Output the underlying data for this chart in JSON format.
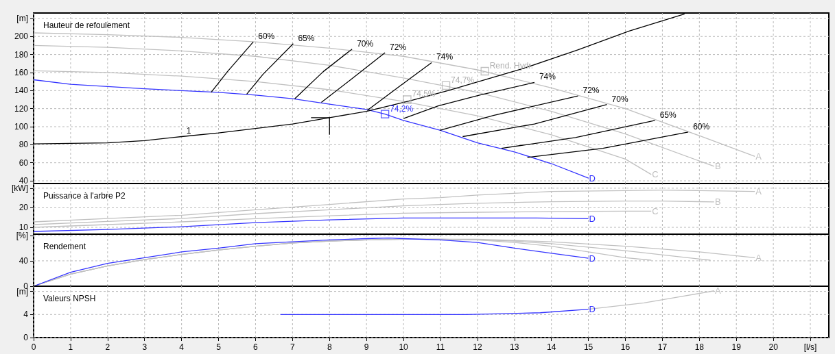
{
  "chart_data": [
    {
      "type": "line",
      "title": "Hauteur de refoulement",
      "xlim": [
        0,
        21.5
      ],
      "xticks": [
        0,
        1,
        2,
        3,
        4,
        5,
        6,
        7,
        8,
        9,
        10,
        11,
        12,
        13,
        14,
        15,
        16,
        17,
        18,
        19,
        20,
        21
      ],
      "ylim": [
        37,
        226
      ],
      "yticks": [
        40,
        60,
        80,
        100,
        120,
        140,
        160,
        180,
        200,
        {
          "value": 220,
          "label": "[m]"
        }
      ],
      "grid": true,
      "marker": "none",
      "tick_labels": "y",
      "series": [
        {
          "name": "A",
          "color": "#c0c0c0",
          "x": [
            0,
            2,
            4,
            6,
            8,
            10,
            12,
            14,
            16,
            18,
            19.5
          ],
          "values": [
            204,
            202,
            199,
            194,
            187,
            178,
            163,
            143,
            120,
            90,
            67
          ]
        },
        {
          "name": "B",
          "color": "#c0c0c0",
          "x": [
            0,
            2,
            4,
            6,
            8,
            10,
            12,
            14,
            16,
            18,
            18.4
          ],
          "values": [
            190,
            188,
            184,
            178,
            168,
            154,
            138,
            117,
            92,
            62,
            56
          ]
        },
        {
          "name": "C",
          "color": "#c0c0c0",
          "x": [
            0,
            2,
            4,
            6,
            8,
            10,
            12,
            14,
            16,
            16.7
          ],
          "values": [
            162,
            160,
            156,
            150,
            141,
            128,
            112,
            91,
            64,
            47
          ]
        },
        {
          "name": "D",
          "color": "#3333ff",
          "x": [
            0,
            1,
            3,
            5,
            6,
            7,
            8,
            9,
            9.5,
            10,
            11,
            12,
            13,
            14,
            15
          ],
          "values": [
            152,
            147,
            142,
            138,
            135,
            131,
            125,
            119,
            114,
            107,
            96,
            82,
            72,
            59,
            43
          ]
        },
        {
          "color": "#000000",
          "x": [
            0,
            2,
            3,
            4,
            5,
            6,
            7,
            8,
            9,
            10.2,
            11.2,
            13.2,
            14.7,
            16.1,
            17.6
          ],
          "values": [
            81,
            82,
            84.5,
            89,
            93,
            98,
            103,
            110,
            117,
            129,
            140,
            164,
            185,
            206,
            225
          ]
        },
        {
          "color": "#000000",
          "x": [
            7.5,
            8,
            8
          ],
          "values": [
            110,
            110,
            91
          ]
        },
        {
          "color": "#000000",
          "x": [
            4.8,
            5.24,
            5.94
          ],
          "values": [
            138,
            161,
            194
          ]
        },
        {
          "color": "#000000",
          "x": [
            5.76,
            6.2,
            7.02
          ],
          "values": [
            136,
            158,
            192
          ]
        },
        {
          "color": "#000000",
          "x": [
            7.06,
            7.83,
            8.61
          ],
          "values": [
            131,
            161,
            186
          ]
        },
        {
          "color": "#000000",
          "x": [
            7.78,
            8.57,
            9.5
          ],
          "values": [
            127,
            152,
            182
          ]
        },
        {
          "color": "#000000",
          "x": [
            9.02,
            9.9,
            10.76
          ],
          "values": [
            118,
            145,
            171
          ]
        },
        {
          "color": "#000000",
          "x": [
            10.0,
            10.94,
            12.06,
            13.54
          ],
          "values": [
            109,
            123,
            135,
            149
          ]
        },
        {
          "color": "#000000",
          "x": [
            10.98,
            12.43,
            14.72
          ],
          "values": [
            96,
            112.5,
            134
          ]
        },
        {
          "color": "#000000",
          "x": [
            11.6,
            13.54,
            15.5
          ],
          "values": [
            89,
            103,
            124.5
          ]
        },
        {
          "color": "#000000",
          "x": [
            12.65,
            14.65,
            16.8
          ],
          "values": [
            76,
            88,
            107
          ]
        },
        {
          "color": "#000000",
          "x": [
            13.35,
            15.39,
            17.7
          ],
          "values": [
            66,
            76,
            94
          ]
        },
        {
          "type": "scatter",
          "marker": "square",
          "color": "#b0b0b0",
          "x": [
            12.2,
            11.15,
            10.1
          ],
          "values": [
            161.5,
            145.7,
            130
          ]
        },
        {
          "type": "scatter",
          "marker": "square",
          "color": "#3333ff",
          "x": [
            9.5
          ],
          "values": [
            114
          ]
        }
      ],
      "annotations": [
        {
          "text": "1",
          "x": 4,
          "y": 89
        },
        {
          "text": "60%",
          "x": 5.94,
          "y": 194
        },
        {
          "text": "65%",
          "x": 7.02,
          "y": 192
        },
        {
          "text": "70%",
          "x": 8.61,
          "y": 186
        },
        {
          "text": "72%",
          "x": 9.5,
          "y": 182
        },
        {
          "text": "74%",
          "x": 10.76,
          "y": 171
        },
        {
          "text": "74%",
          "x": 13.54,
          "y": 149
        },
        {
          "text": "72%",
          "x": 14.72,
          "y": 134
        },
        {
          "text": "70%",
          "x": 15.5,
          "y": 124.5
        },
        {
          "text": "65%",
          "x": 16.8,
          "y": 107
        },
        {
          "text": "60%",
          "x": 17.7,
          "y": 94
        },
        {
          "text": "Rend. Hydr.",
          "x": 12.2,
          "y": 161.5
        },
        {
          "text": "74,7%",
          "x": 11.15,
          "y": 145.7
        },
        {
          "text": "74,5%",
          "x": 10.1,
          "y": 130
        },
        {
          "text": "74,2%",
          "x": 9.5,
          "y": 114
        }
      ]
    },
    {
      "type": "line",
      "title": "Puissance à l'arbre P2",
      "xlim": [
        0,
        21.5
      ],
      "xticks": [
        0,
        1,
        2,
        3,
        4,
        5,
        6,
        7,
        8,
        9,
        10,
        11,
        12,
        13,
        14,
        15,
        16,
        17,
        18,
        19,
        20,
        21
      ],
      "ylim": [
        6.5,
        32.4
      ],
      "yticks": [
        10,
        20,
        {
          "value": 30,
          "label": "[kW]"
        }
      ],
      "grid": true,
      "marker": "none",
      "tick_labels": "y",
      "series": [
        {
          "name": "A",
          "color": "#c0c0c0",
          "x": [
            0,
            2,
            4,
            6,
            8,
            10,
            11,
            12,
            14,
            16,
            17,
            18,
            19.5
          ],
          "values": [
            12.8,
            14.5,
            16.2,
            19,
            21.7,
            24.5,
            25.2,
            26.5,
            28.3,
            28.8,
            29,
            28.8,
            28.3
          ]
        },
        {
          "name": "B",
          "color": "#c0c0c0",
          "x": [
            0,
            2,
            4,
            6,
            8,
            10,
            11,
            12,
            14,
            16,
            17,
            18.4
          ],
          "values": [
            11.4,
            13,
            14.5,
            17,
            19,
            21,
            21.7,
            22.3,
            23.1,
            23.4,
            23.4,
            23
          ]
        },
        {
          "name": "C",
          "color": "#c0c0c0",
          "x": [
            0,
            2,
            4,
            6,
            8,
            10,
            12,
            14,
            16,
            16.7
          ],
          "values": [
            10,
            11.4,
            12.8,
            14.4,
            15.9,
            17.2,
            17.7,
            18.1,
            18.3,
            18.3
          ]
        },
        {
          "name": "D",
          "color": "#3333ff",
          "x": [
            0,
            2,
            4,
            6,
            8,
            10,
            12,
            13.6,
            15
          ],
          "values": [
            7.9,
            8.9,
            10.3,
            12.4,
            13.8,
            14.8,
            14.8,
            14.8,
            14.4
          ]
        }
      ]
    },
    {
      "type": "line",
      "title": "Rendement",
      "xlim": [
        0,
        21.5
      ],
      "xticks": [
        0,
        1,
        2,
        3,
        4,
        5,
        6,
        7,
        8,
        9,
        10,
        11,
        12,
        13,
        14,
        15,
        16,
        17,
        18,
        19,
        20,
        21
      ],
      "ylim": [
        0,
        82
      ],
      "yticks": [
        0,
        40,
        {
          "value": 80,
          "label": "[%]"
        }
      ],
      "grid": true,
      "marker": "none",
      "tick_labels": "y",
      "series": [
        {
          "name": "A",
          "color": "#c0c0c0",
          "x": [
            0,
            1,
            2,
            3,
            4,
            5,
            6,
            7,
            8,
            9,
            10,
            11,
            12,
            13,
            14,
            16,
            18,
            19.5
          ],
          "values": [
            0,
            19,
            32,
            42,
            50,
            57,
            63,
            68,
            71,
            73,
            74,
            74,
            74,
            72,
            70,
            63,
            54,
            45
          ]
        },
        {
          "color": "#c0c0c0",
          "x": [
            0,
            1,
            2,
            3,
            4,
            5,
            6,
            7,
            8,
            9,
            10,
            11,
            12,
            13,
            14,
            16,
            18.3
          ],
          "values": [
            0,
            19,
            32,
            42,
            50,
            57,
            63,
            68,
            71,
            73,
            74,
            74,
            73,
            71,
            67,
            56,
            41
          ]
        },
        {
          "color": "#c0c0c0",
          "x": [
            0,
            1,
            2,
            3,
            4,
            5,
            6,
            7,
            8,
            9,
            10,
            11,
            12,
            13,
            14,
            15,
            16,
            16.7
          ],
          "values": [
            0,
            19,
            32,
            42,
            50,
            57,
            63,
            68,
            71,
            73,
            74,
            74,
            73,
            69,
            63,
            54,
            45,
            41
          ]
        },
        {
          "name": "D",
          "color": "#3333ff",
          "x": [
            0,
            1,
            2,
            3,
            4,
            5,
            6,
            7,
            8,
            9,
            9.6,
            10,
            11,
            12,
            13,
            14,
            15
          ],
          "values": [
            0,
            22,
            36,
            45,
            54,
            60,
            67,
            70,
            73,
            75,
            76,
            75,
            73,
            69,
            60,
            52,
            44
          ]
        }
      ]
    },
    {
      "type": "line",
      "title": "Valeurs NPSH",
      "xlim": [
        0,
        21.5
      ],
      "xticks": [
        0,
        1,
        2,
        3,
        4,
        5,
        6,
        7,
        8,
        9,
        10,
        11,
        12,
        13,
        14,
        15,
        16,
        17,
        18,
        19,
        20,
        {
          "value": 21,
          "label": "[l/s]"
        }
      ],
      "ylim": [
        0,
        8.9
      ],
      "yticks": [
        0,
        4,
        {
          "value": 8,
          "label": "[m]"
        }
      ],
      "grid": true,
      "marker": "none",
      "series": [
        {
          "name": "D",
          "color": "#3333ff",
          "x": [
            6.67,
            11.7,
            13.7,
            15
          ],
          "values": [
            4,
            4,
            4.3,
            4.9
          ]
        },
        {
          "name": "A",
          "color": "#c0c0c0",
          "x": [
            15,
            16.5,
            17.5,
            18.4
          ],
          "values": [
            4.9,
            6,
            7.1,
            8.1
          ]
        }
      ]
    }
  ]
}
